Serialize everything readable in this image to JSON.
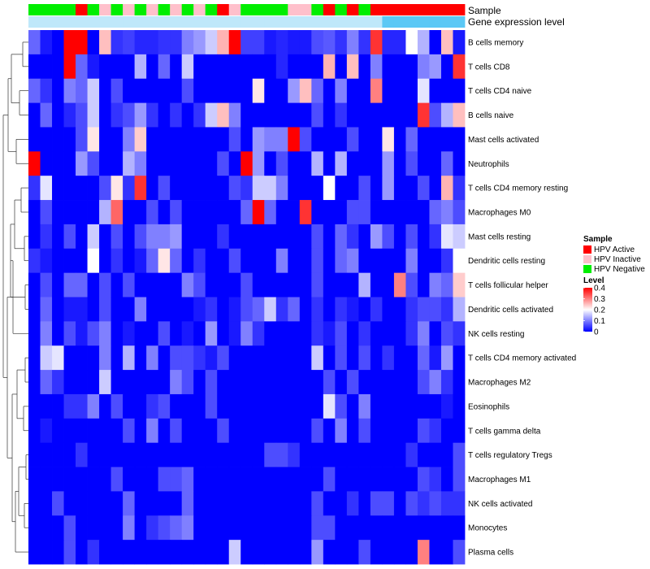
{
  "chart_data": {
    "type": "heatmap",
    "annotation_labels": {
      "sample": "Sample",
      "gene_expression": "Gene expression level"
    },
    "rows": [
      "B cells memory",
      "T cells CD8",
      "T cells CD4 naive",
      "B cells naive",
      "Mast cells activated",
      "Neutrophils",
      "T cells CD4 memory resting",
      "Macrophages M0",
      "Mast cells resting",
      "Dendritic cells resting",
      "T cells follicular helper",
      "Dendritic cells activated",
      "NK cells resting",
      "T cells CD4 memory activated",
      "Macrophages M2",
      "Eosinophils",
      "T cells gamma delta",
      "T cells regulatory  Tregs",
      "Macrophages M1",
      "NK cells activated",
      "Monocytes",
      "Plasma cells"
    ],
    "sample_groups": [
      "N",
      "N",
      "N",
      "N",
      "A",
      "N",
      "I",
      "N",
      "I",
      "N",
      "I",
      "N",
      "I",
      "N",
      "I",
      "N",
      "A",
      "I",
      "N",
      "N",
      "N",
      "N",
      "I",
      "I",
      "N",
      "A",
      "N",
      "A",
      "N",
      "A",
      "A",
      "A",
      "A",
      "A",
      "A",
      "A",
      "A"
    ],
    "gene_expression_band": [
      "light",
      "light",
      "light",
      "light",
      "light",
      "light",
      "light",
      "light",
      "light",
      "light",
      "light",
      "light",
      "light",
      "light",
      "light",
      "light",
      "light",
      "light",
      "light",
      "light",
      "light",
      "light",
      "light",
      "light",
      "light",
      "light",
      "light",
      "light",
      "light",
      "light",
      "dark",
      "dark",
      "dark",
      "dark",
      "dark",
      "dark",
      "dark"
    ],
    "values": [
      [
        0.08,
        0.02,
        0.0,
        0.4,
        0.4,
        0.0,
        0.25,
        0.04,
        0.05,
        0.03,
        0.03,
        0.04,
        0.04,
        0.1,
        0.12,
        0.16,
        0.26,
        0.4,
        0.05,
        0.05,
        0.02,
        0.03,
        0.02,
        0.02,
        0.06,
        0.07,
        0.04,
        0.1,
        0.04,
        0.36,
        0.03,
        0.03,
        0.2,
        0.14,
        0.0,
        0.25,
        0.02
      ],
      [
        0.0,
        0.0,
        0.0,
        0.4,
        0.08,
        0.02,
        0.0,
        0.0,
        0.0,
        0.14,
        0.0,
        0.08,
        0.0,
        0.16,
        0.0,
        0.0,
        0.0,
        0.0,
        0.0,
        0.0,
        0.0,
        0.03,
        0.0,
        0.0,
        0.0,
        0.26,
        0.0,
        0.25,
        0.0,
        0.1,
        0.0,
        0.0,
        0.0,
        0.1,
        0.12,
        0.0,
        0.36
      ],
      [
        0.08,
        0.04,
        0.0,
        0.1,
        0.08,
        0.16,
        0.0,
        0.06,
        0.0,
        0.0,
        0.0,
        0.0,
        0.0,
        0.06,
        0.0,
        0.0,
        0.0,
        0.0,
        0.0,
        0.22,
        0.0,
        0.0,
        0.12,
        0.25,
        0.08,
        0.0,
        0.1,
        0.0,
        0.0,
        0.3,
        0.0,
        0.0,
        0.0,
        0.18,
        0.0,
        0.0,
        0.0
      ],
      [
        0.0,
        0.08,
        0.0,
        0.03,
        0.06,
        0.16,
        0.0,
        0.04,
        0.06,
        0.12,
        0.04,
        0.0,
        0.04,
        0.0,
        0.04,
        0.16,
        0.25,
        0.1,
        0.0,
        0.0,
        0.0,
        0.0,
        0.0,
        0.0,
        0.06,
        0.0,
        0.04,
        0.0,
        0.0,
        0.0,
        0.0,
        0.0,
        0.0,
        0.36,
        0.06,
        0.14,
        0.25
      ],
      [
        0.0,
        0.0,
        0.0,
        0.0,
        0.06,
        0.22,
        0.0,
        0.0,
        0.1,
        0.24,
        0.0,
        0.0,
        0.0,
        0.0,
        0.0,
        0.0,
        0.0,
        0.06,
        0.0,
        0.12,
        0.1,
        0.1,
        0.4,
        0.06,
        0.0,
        0.0,
        0.0,
        0.06,
        0.0,
        0.0,
        0.22,
        0.0,
        0.08,
        0.0,
        0.0,
        0.0,
        0.0
      ],
      [
        0.4,
        0.0,
        0.0,
        0.0,
        0.12,
        0.06,
        0.0,
        0.0,
        0.14,
        0.1,
        0.0,
        0.0,
        0.0,
        0.0,
        0.0,
        0.0,
        0.06,
        0.0,
        0.4,
        0.12,
        0.0,
        0.06,
        0.0,
        0.0,
        0.14,
        0.0,
        0.14,
        0.0,
        0.0,
        0.0,
        0.12,
        0.0,
        0.06,
        0.0,
        0.0,
        0.08,
        0.0
      ],
      [
        0.04,
        0.18,
        0.0,
        0.0,
        0.0,
        0.0,
        0.06,
        0.22,
        0.04,
        0.36,
        0.0,
        0.06,
        0.0,
        0.0,
        0.0,
        0.0,
        0.0,
        0.06,
        0.04,
        0.16,
        0.16,
        0.1,
        0.0,
        0.0,
        0.0,
        0.2,
        0.0,
        0.0,
        0.06,
        0.0,
        0.12,
        0.0,
        0.0,
        0.06,
        0.0,
        0.26,
        0.04
      ],
      [
        0.0,
        0.06,
        0.0,
        0.0,
        0.0,
        0.0,
        0.14,
        0.32,
        0.0,
        0.0,
        0.06,
        0.0,
        0.06,
        0.0,
        0.0,
        0.0,
        0.0,
        0.0,
        0.08,
        0.4,
        0.08,
        0.0,
        0.0,
        0.36,
        0.0,
        0.0,
        0.0,
        0.06,
        0.06,
        0.0,
        0.0,
        0.0,
        0.0,
        0.0,
        0.08,
        0.1,
        0.06
      ],
      [
        0.0,
        0.04,
        0.0,
        0.06,
        0.0,
        0.16,
        0.0,
        0.06,
        0.0,
        0.06,
        0.1,
        0.1,
        0.12,
        0.0,
        0.0,
        0.0,
        0.04,
        0.0,
        0.0,
        0.0,
        0.0,
        0.0,
        0.0,
        0.0,
        0.06,
        0.0,
        0.08,
        0.04,
        0.0,
        0.12,
        0.06,
        0.0,
        0.06,
        0.0,
        0.04,
        0.18,
        0.16
      ],
      [
        0.04,
        0.02,
        0.0,
        0.0,
        0.0,
        0.2,
        0.0,
        0.04,
        0.0,
        0.02,
        0.08,
        0.22,
        0.08,
        0.0,
        0.04,
        0.0,
        0.0,
        0.06,
        0.0,
        0.0,
        0.0,
        0.1,
        0.0,
        0.0,
        0.06,
        0.0,
        0.08,
        0.1,
        0.0,
        0.0,
        0.0,
        0.0,
        0.1,
        0.0,
        0.0,
        0.04,
        0.2
      ],
      [
        0.0,
        0.06,
        0.0,
        0.08,
        0.08,
        0.0,
        0.06,
        0.0,
        0.06,
        0.0,
        0.0,
        0.0,
        0.0,
        0.1,
        0.06,
        0.0,
        0.0,
        0.0,
        0.06,
        0.0,
        0.0,
        0.0,
        0.0,
        0.0,
        0.06,
        0.0,
        0.0,
        0.0,
        0.14,
        0.0,
        0.0,
        0.3,
        0.06,
        0.0,
        0.1,
        0.08,
        0.24
      ],
      [
        0.0,
        0.08,
        0.0,
        0.02,
        0.02,
        0.0,
        0.06,
        0.0,
        0.0,
        0.1,
        0.0,
        0.0,
        0.0,
        0.0,
        0.02,
        0.04,
        0.0,
        0.02,
        0.06,
        0.08,
        0.16,
        0.04,
        0.08,
        0.0,
        0.04,
        0.0,
        0.04,
        0.02,
        0.0,
        0.04,
        0.0,
        0.0,
        0.04,
        0.06,
        0.06,
        0.04,
        0.14
      ],
      [
        0.0,
        0.1,
        0.0,
        0.06,
        0.02,
        0.06,
        0.1,
        0.0,
        0.02,
        0.0,
        0.0,
        0.06,
        0.0,
        0.02,
        0.0,
        0.12,
        0.0,
        0.02,
        0.1,
        0.04,
        0.0,
        0.0,
        0.0,
        0.0,
        0.04,
        0.02,
        0.06,
        0.0,
        0.04,
        0.0,
        0.0,
        0.0,
        0.04,
        0.1,
        0.0,
        0.06,
        0.04
      ],
      [
        0.0,
        0.16,
        0.18,
        0.0,
        0.0,
        0.0,
        0.1,
        0.0,
        0.14,
        0.0,
        0.1,
        0.0,
        0.06,
        0.06,
        0.04,
        0.02,
        0.06,
        0.0,
        0.0,
        0.0,
        0.0,
        0.0,
        0.0,
        0.0,
        0.16,
        0.0,
        0.06,
        0.0,
        0.06,
        0.0,
        0.04,
        0.0,
        0.0,
        0.08,
        0.02,
        0.12,
        0.0
      ],
      [
        0.0,
        0.08,
        0.04,
        0.0,
        0.0,
        0.0,
        0.16,
        0.0,
        0.0,
        0.0,
        0.0,
        0.0,
        0.1,
        0.06,
        0.0,
        0.06,
        0.0,
        0.0,
        0.0,
        0.0,
        0.0,
        0.0,
        0.0,
        0.0,
        0.0,
        0.06,
        0.0,
        0.06,
        0.0,
        0.0,
        0.0,
        0.0,
        0.0,
        0.06,
        0.1,
        0.04,
        0.0
      ],
      [
        0.0,
        0.0,
        0.0,
        0.04,
        0.04,
        0.1,
        0.0,
        0.06,
        0.0,
        0.0,
        0.04,
        0.06,
        0.0,
        0.0,
        0.0,
        0.06,
        0.0,
        0.0,
        0.0,
        0.0,
        0.0,
        0.0,
        0.0,
        0.0,
        0.0,
        0.18,
        0.06,
        0.0,
        0.1,
        0.0,
        0.0,
        0.0,
        0.0,
        0.0,
        0.0,
        0.02,
        0.0
      ],
      [
        0.0,
        0.02,
        0.0,
        0.0,
        0.0,
        0.0,
        0.0,
        0.0,
        0.06,
        0.0,
        0.1,
        0.0,
        0.06,
        0.0,
        0.0,
        0.0,
        0.06,
        0.0,
        0.0,
        0.0,
        0.0,
        0.0,
        0.0,
        0.0,
        0.06,
        0.0,
        0.1,
        0.0,
        0.06,
        0.0,
        0.0,
        0.0,
        0.0,
        0.06,
        0.04,
        0.0,
        0.0
      ],
      [
        0.0,
        0.0,
        0.0,
        0.0,
        0.04,
        0.0,
        0.0,
        0.0,
        0.0,
        0.0,
        0.0,
        0.0,
        0.0,
        0.0,
        0.0,
        0.0,
        0.0,
        0.0,
        0.0,
        0.0,
        0.06,
        0.06,
        0.04,
        0.0,
        0.0,
        0.0,
        0.0,
        0.0,
        0.0,
        0.0,
        0.0,
        0.0,
        0.04,
        0.0,
        0.0,
        0.0,
        0.06
      ],
      [
        0.0,
        0.0,
        0.0,
        0.0,
        0.0,
        0.0,
        0.0,
        0.06,
        0.0,
        0.0,
        0.0,
        0.06,
        0.06,
        0.08,
        0.0,
        0.0,
        0.0,
        0.0,
        0.0,
        0.0,
        0.0,
        0.0,
        0.0,
        0.0,
        0.0,
        0.06,
        0.0,
        0.0,
        0.0,
        0.0,
        0.0,
        0.0,
        0.0,
        0.06,
        0.04,
        0.0,
        0.06
      ],
      [
        0.0,
        0.0,
        0.06,
        0.0,
        0.0,
        0.0,
        0.0,
        0.0,
        0.08,
        0.0,
        0.0,
        0.0,
        0.0,
        0.08,
        0.0,
        0.0,
        0.0,
        0.0,
        0.0,
        0.0,
        0.0,
        0.0,
        0.0,
        0.0,
        0.06,
        0.0,
        0.0,
        0.04,
        0.0,
        0.06,
        0.06,
        0.0,
        0.06,
        0.04,
        0.06,
        0.04,
        0.04
      ],
      [
        0.0,
        0.0,
        0.0,
        0.06,
        0.0,
        0.0,
        0.0,
        0.0,
        0.1,
        0.0,
        0.04,
        0.06,
        0.08,
        0.1,
        0.0,
        0.0,
        0.0,
        0.0,
        0.0,
        0.0,
        0.0,
        0.0,
        0.0,
        0.0,
        0.06,
        0.06,
        0.0,
        0.0,
        0.0,
        0.0,
        0.0,
        0.0,
        0.0,
        0.0,
        0.0,
        0.0,
        0.0
      ],
      [
        0.0,
        0.0,
        0.0,
        0.06,
        0.0,
        0.04,
        0.0,
        0.0,
        0.0,
        0.0,
        0.0,
        0.0,
        0.0,
        0.0,
        0.0,
        0.0,
        0.0,
        0.16,
        0.0,
        0.0,
        0.0,
        0.0,
        0.0,
        0.0,
        0.12,
        0.0,
        0.0,
        0.0,
        0.06,
        0.0,
        0.0,
        0.0,
        0.0,
        0.3,
        0.0,
        0.0,
        0.06
      ]
    ],
    "legend_sample": {
      "title": "Sample",
      "entries": [
        {
          "code": "A",
          "label": "HPV Active",
          "color": "#FF0000"
        },
        {
          "code": "I",
          "label": "HPV Inactive",
          "color": "#FFC0CB"
        },
        {
          "code": "N",
          "label": "HPV Negative",
          "color": "#00EE00"
        }
      ]
    },
    "legend_level": {
      "title": "Level",
      "min": 0,
      "max": 0.4,
      "ticks": [
        "0",
        "0.1",
        "0.2",
        "0.3",
        "0.4"
      ],
      "tick_values": [
        0,
        0.1,
        0.2,
        0.3,
        0.4
      ],
      "colors": [
        "#0000FF",
        "#FFFFFF",
        "#FF0000"
      ]
    },
    "gene_band_colors": {
      "light": "#BFE8FA",
      "dark": "#5BC8F5"
    }
  }
}
